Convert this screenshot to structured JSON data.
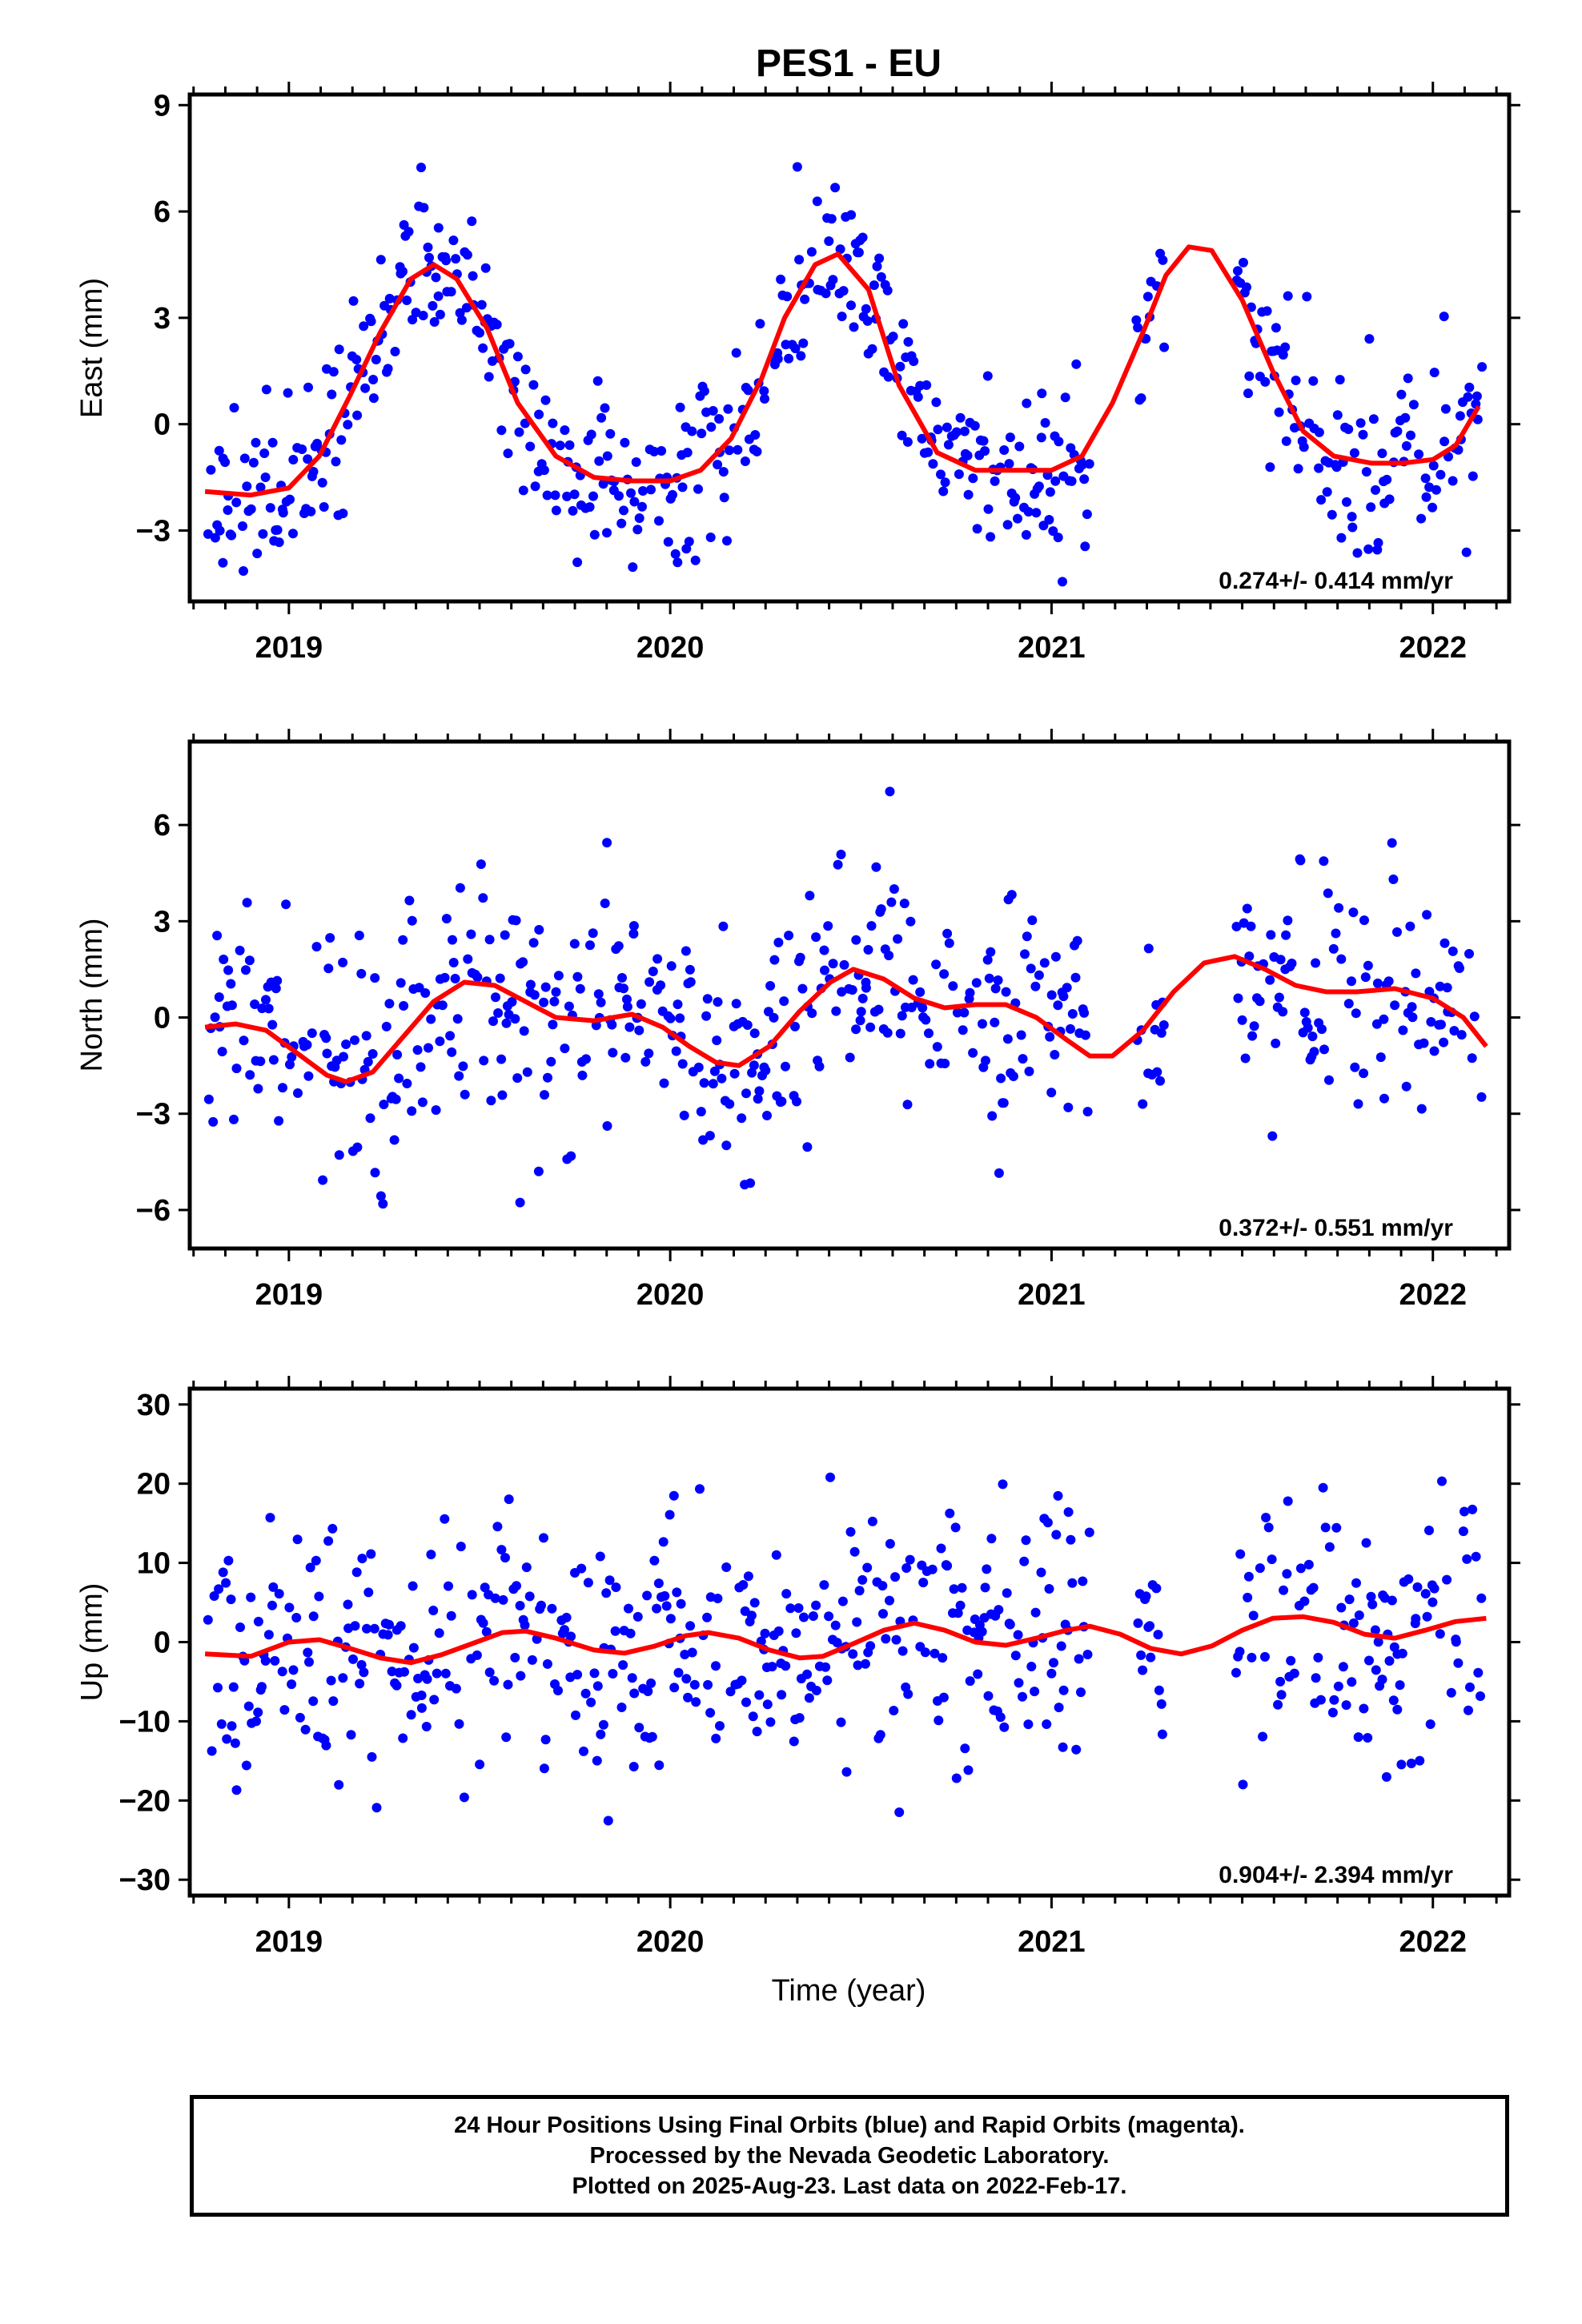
{
  "title": "PES1 - EU",
  "xlabel": "Time (year)",
  "footer": {
    "line1": "24 Hour Positions Using Final Orbits (blue) and Rapid Orbits (magenta).",
    "line2": "Processed by the Nevada Geodetic Laboratory.",
    "line3": "Plotted on 2025-Aug-23. Last data on 2022-Feb-17."
  },
  "colors": {
    "points": "#0000ff",
    "model": "#ff0000",
    "frame": "#000000"
  },
  "chart_data": [
    {
      "type": "scatter",
      "panel": "east",
      "ylabel": "East (mm)",
      "xlim": [
        2018.74,
        2022.2
      ],
      "ylim": [
        -5,
        9.3
      ],
      "xticks": [
        2019,
        2020,
        2021,
        2022
      ],
      "xtick_labels": [
        "2019",
        "2020",
        "2021",
        "2022"
      ],
      "yticks": [
        -3,
        0,
        3,
        6,
        9
      ],
      "ytick_labels": [
        "−3",
        "0",
        "3",
        "6",
        "9"
      ],
      "rate_label": "0.274+/- 0.414 mm/yr",
      "series": [
        {
          "kind": "points",
          "description": "daily positions, final orbits",
          "model_ref": "model",
          "noise": 1.25,
          "seed": 11,
          "gaps": [
            [
              2021.1,
              2021.22
            ],
            [
              2021.3,
              2021.48
            ]
          ]
        },
        {
          "kind": "line",
          "x": [
            2018.78,
            2018.9,
            2019.0,
            2019.08,
            2019.16,
            2019.24,
            2019.32,
            2019.38,
            2019.44,
            2019.52,
            2019.6,
            2019.7,
            2019.8,
            2019.9,
            2020.0,
            2020.08,
            2020.16,
            2020.24,
            2020.3,
            2020.38,
            2020.44,
            2020.52,
            2020.6,
            2020.7,
            2020.8,
            2020.9,
            2021.0,
            2021.08,
            2021.16,
            2021.24,
            2021.3,
            2021.36,
            2021.42,
            2021.5,
            2021.58,
            2021.66,
            2021.74,
            2021.84,
            2021.92,
            2022.0,
            2022.06,
            2022.12
          ],
          "y": [
            -1.9,
            -2.0,
            -1.8,
            -0.9,
            0.8,
            2.6,
            4.1,
            4.5,
            4.1,
            2.7,
            0.6,
            -0.9,
            -1.5,
            -1.6,
            -1.6,
            -1.3,
            -0.4,
            1.3,
            3.0,
            4.5,
            4.8,
            3.8,
            1.1,
            -0.8,
            -1.3,
            -1.3,
            -1.3,
            -0.9,
            0.6,
            2.6,
            4.2,
            5.0,
            4.9,
            3.5,
            1.5,
            -0.2,
            -0.9,
            -1.1,
            -1.1,
            -1.0,
            -0.6,
            0.5
          ]
        }
      ]
    },
    {
      "type": "scatter",
      "panel": "north",
      "ylabel": "North (mm)",
      "xlim": [
        2018.74,
        2022.2
      ],
      "ylim": [
        -7.2,
        8.6
      ],
      "xticks": [
        2019,
        2020,
        2021,
        2022
      ],
      "xtick_labels": [
        "2019",
        "2020",
        "2021",
        "2022"
      ],
      "yticks": [
        -6,
        -3,
        0,
        3,
        6
      ],
      "ytick_labels": [
        "−6",
        "−3",
        "0",
        "3",
        "6"
      ],
      "rate_label": "0.372+/- 0.551 mm/yr",
      "series": [
        {
          "kind": "points",
          "description": "daily positions, final orbits",
          "model_ref": "model",
          "noise": 1.75,
          "seed": 23,
          "gaps": [
            [
              2021.1,
              2021.22
            ],
            [
              2021.3,
              2021.48
            ]
          ]
        },
        {
          "kind": "line",
          "x": [
            2018.78,
            2018.86,
            2018.94,
            2019.02,
            2019.1,
            2019.15,
            2019.22,
            2019.3,
            2019.38,
            2019.46,
            2019.54,
            2019.62,
            2019.7,
            2019.8,
            2019.9,
            2019.98,
            2020.05,
            2020.12,
            2020.18,
            2020.26,
            2020.34,
            2020.42,
            2020.48,
            2020.56,
            2020.64,
            2020.72,
            2020.8,
            2020.88,
            2020.96,
            2021.04,
            2021.1,
            2021.16,
            2021.24,
            2021.32,
            2021.4,
            2021.48,
            2021.56,
            2021.64,
            2021.72,
            2021.8,
            2021.9,
            2022.0,
            2022.08,
            2022.14
          ],
          "y": [
            -0.3,
            -0.2,
            -0.4,
            -1.1,
            -1.8,
            -2.0,
            -1.7,
            -0.6,
            0.5,
            1.1,
            1.0,
            0.5,
            0.0,
            -0.1,
            0.1,
            -0.3,
            -0.9,
            -1.4,
            -1.5,
            -0.9,
            0.2,
            1.1,
            1.5,
            1.2,
            0.6,
            0.3,
            0.4,
            0.4,
            0.0,
            -0.7,
            -1.2,
            -1.2,
            -0.4,
            0.8,
            1.7,
            1.9,
            1.5,
            1.0,
            0.8,
            0.8,
            0.9,
            0.6,
            0.0,
            -0.9
          ]
        }
      ]
    },
    {
      "type": "scatter",
      "panel": "up",
      "ylabel": "Up (mm)",
      "xlim": [
        2018.74,
        2022.2
      ],
      "ylim": [
        -32,
        32
      ],
      "xticks": [
        2019,
        2020,
        2021,
        2022
      ],
      "xtick_labels": [
        "2019",
        "2020",
        "2021",
        "2022"
      ],
      "yticks": [
        -30,
        -20,
        -10,
        0,
        10,
        20,
        30
      ],
      "ytick_labels": [
        "−30",
        "−20",
        "−10",
        "0",
        "10",
        "20",
        "30"
      ],
      "rate_label": "0.904+/- 2.394 mm/yr",
      "series": [
        {
          "kind": "points",
          "description": "daily positions, final orbits",
          "model_ref": "model",
          "noise": 8.0,
          "seed": 37,
          "gaps": [
            [
              2021.1,
              2021.22
            ],
            [
              2021.3,
              2021.48
            ]
          ]
        },
        {
          "kind": "line",
          "x": [
            2018.78,
            2018.9,
            2019.0,
            2019.08,
            2019.16,
            2019.24,
            2019.32,
            2019.4,
            2019.48,
            2019.56,
            2019.62,
            2019.7,
            2019.8,
            2019.88,
            2019.96,
            2020.04,
            2020.1,
            2020.18,
            2020.26,
            2020.34,
            2020.4,
            2020.48,
            2020.56,
            2020.64,
            2020.72,
            2020.8,
            2020.88,
            2020.96,
            2021.04,
            2021.1,
            2021.18,
            2021.26,
            2021.34,
            2021.42,
            2021.5,
            2021.58,
            2021.66,
            2021.74,
            2021.82,
            2021.9,
            2021.98,
            2022.06,
            2022.14
          ],
          "y": [
            -1.5,
            -1.8,
            0.0,
            0.3,
            -0.8,
            -2.0,
            -2.6,
            -1.6,
            -0.2,
            1.2,
            1.4,
            0.5,
            -1.0,
            -1.4,
            -0.5,
            0.8,
            1.2,
            0.5,
            -1.0,
            -2.0,
            -1.8,
            -0.2,
            1.5,
            2.4,
            1.5,
            0.0,
            -0.4,
            0.5,
            1.5,
            2.0,
            1.0,
            -0.8,
            -1.5,
            -0.5,
            1.5,
            3.0,
            3.2,
            2.5,
            1.0,
            0.5,
            1.5,
            2.6,
            3.0
          ]
        }
      ]
    }
  ]
}
